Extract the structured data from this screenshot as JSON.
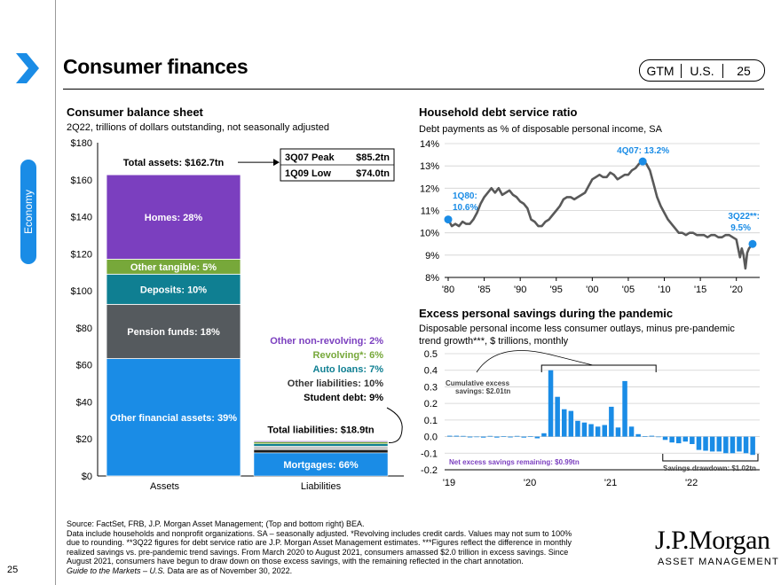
{
  "header": {
    "title": "Consumer finances",
    "badge": [
      "GTM",
      "U.S.",
      "25"
    ],
    "side_tab": "Economy",
    "page_number": "25"
  },
  "colors": {
    "accent_blue": "#1a8ce6",
    "homes": "#7b3fbf",
    "other_tangible": "#77a83a",
    "deposits": "#0f7f92",
    "pension": "#555a5e",
    "other_financial": "#1a8ce6",
    "line_gray": "#595959",
    "savings_bar": "#1a8ce6"
  },
  "chart_data": [
    {
      "type": "bar",
      "title": "Consumer balance sheet",
      "subtitle": "2Q22, trillions of dollars outstanding, not seasonally adjusted",
      "categories": [
        "Assets",
        "Liabilities"
      ],
      "ylim": [
        0,
        180
      ],
      "yticks": [
        "$0",
        "$20",
        "$40",
        "$60",
        "$80",
        "$100",
        "$120",
        "$140",
        "$160",
        "$180"
      ],
      "assets_segments": [
        {
          "label": "Other financial assets: 39%",
          "value": 63.4,
          "color": "#1a8ce6"
        },
        {
          "label": "Pension funds: 18%",
          "value": 29.3,
          "color": "#555a5e"
        },
        {
          "label": "Deposits: 10%",
          "value": 16.3,
          "color": "#0f7f92"
        },
        {
          "label": "Other tangible: 5%",
          "value": 8.1,
          "color": "#77a83a"
        },
        {
          "label": "Homes: 28%",
          "value": 45.6,
          "color": "#7b3fbf"
        }
      ],
      "liabilities_segments": [
        {
          "label": "Mortgages: 66%",
          "value": 12.5,
          "color": "#1a8ce6"
        },
        {
          "label": "Student debt: 9%",
          "value": 1.7,
          "color": "#1a1a1a"
        },
        {
          "label": "Other liabilities: 10%",
          "value": 1.9,
          "color": "#c9c9c9"
        },
        {
          "label": "Auto loans: 7%",
          "value": 1.3,
          "color": "#0f7f92"
        },
        {
          "label": "Revolving*: 6%",
          "value": 1.1,
          "color": "#77a83a"
        },
        {
          "label": "Other non-revolving: 2%",
          "value": 0.4,
          "color": "#7b3fbf"
        }
      ],
      "liab_label_colors": [
        "#7b3fbf",
        "#77a83a",
        "#0f7f92",
        "#333333",
        "#000000"
      ],
      "total_assets_label": "Total assets: $162.7tn",
      "total_liabilities_label": "Total liabilities: $18.9tn",
      "peak_table": [
        [
          "3Q07 Peak",
          "$85.2tn"
        ],
        [
          "1Q09 Low",
          "$74.0tn"
        ]
      ]
    },
    {
      "type": "line",
      "title": "Household debt service ratio",
      "subtitle": "Debt payments as % of disposable personal income, SA",
      "xlim": [
        1980,
        2022.5
      ],
      "ylim": [
        8,
        14
      ],
      "xticks": [
        "'80",
        "'85",
        "'90",
        "'95",
        "'00",
        "'05",
        "'10",
        "'15",
        "'20"
      ],
      "yticks": [
        "8%",
        "9%",
        "10%",
        "11%",
        "12%",
        "13%",
        "14%"
      ],
      "x": [
        1980,
        1980.5,
        1981,
        1981.5,
        1982,
        1982.5,
        1983,
        1983.5,
        1984,
        1984.5,
        1985,
        1985.5,
        1986,
        1986.5,
        1987,
        1987.5,
        1988,
        1988.5,
        1989,
        1989.5,
        1990,
        1990.5,
        1991,
        1991.5,
        1992,
        1992.5,
        1993,
        1993.5,
        1994,
        1994.5,
        1995,
        1995.5,
        1996,
        1996.5,
        1997,
        1997.5,
        1998,
        1998.5,
        1999,
        1999.5,
        2000,
        2000.5,
        2001,
        2001.5,
        2002,
        2002.5,
        2003,
        2003.5,
        2004,
        2004.5,
        2005,
        2005.5,
        2006,
        2006.5,
        2007,
        2007.5,
        2008,
        2008.5,
        2009,
        2009.5,
        2010,
        2010.5,
        2011,
        2011.5,
        2012,
        2012.5,
        2013,
        2013.5,
        2014,
        2014.5,
        2015,
        2015.5,
        2016,
        2016.5,
        2017,
        2017.5,
        2018,
        2018.5,
        2019,
        2019.5,
        2020,
        2020.25,
        2020.5,
        2020.75,
        2021,
        2021.25,
        2021.5,
        2021.75,
        2022,
        2022.25
      ],
      "y": [
        10.6,
        10.3,
        10.4,
        10.3,
        10.5,
        10.4,
        10.4,
        10.6,
        10.9,
        11.3,
        11.6,
        11.8,
        12.0,
        11.8,
        12.0,
        11.7,
        11.8,
        11.9,
        11.7,
        11.6,
        11.4,
        11.3,
        11.1,
        10.6,
        10.5,
        10.3,
        10.3,
        10.5,
        10.6,
        10.8,
        11.0,
        11.2,
        11.5,
        11.6,
        11.6,
        11.5,
        11.6,
        11.7,
        11.8,
        12.1,
        12.4,
        12.5,
        12.6,
        12.5,
        12.5,
        12.7,
        12.6,
        12.4,
        12.5,
        12.6,
        12.6,
        12.8,
        12.9,
        13.1,
        13.2,
        13.1,
        12.8,
        12.2,
        11.6,
        11.2,
        10.9,
        10.6,
        10.4,
        10.2,
        10.0,
        10.0,
        9.9,
        10.0,
        10.0,
        9.9,
        9.9,
        9.9,
        9.8,
        9.9,
        9.9,
        9.8,
        9.8,
        9.9,
        9.9,
        9.8,
        9.7,
        9.3,
        8.9,
        9.3,
        9.0,
        8.4,
        9.1,
        9.3,
        9.4,
        9.5
      ],
      "annotations": {
        "start_label": [
          "1Q80:",
          "10.6%"
        ],
        "peak_label": "4Q07:  13.2%",
        "end_label": [
          "3Q22**:",
          "9.5%"
        ]
      }
    },
    {
      "type": "bar",
      "title": "Excess personal savings during the pandemic",
      "subtitle": [
        "Disposable personal income less consumer outlays, minus pre-pandemic",
        "trend growth***, $ trillions, monthly"
      ],
      "ylim": [
        -0.2,
        0.5
      ],
      "yticks": [
        "-0.2",
        "-0.1",
        "0.0",
        "0.1",
        "0.2",
        "0.3",
        "0.4",
        "0.5"
      ],
      "xticks": [
        "'19",
        "'20",
        "'21",
        "'22"
      ],
      "x_start": "2019-01",
      "values": [
        0.005,
        0.005,
        0.004,
        -0.005,
        -0.003,
        -0.006,
        0.004,
        -0.006,
        0.003,
        -0.005,
        0.004,
        -0.006,
        0.003,
        -0.01,
        0.02,
        0.4,
        0.24,
        0.165,
        0.155,
        0.095,
        0.085,
        0.075,
        0.06,
        0.07,
        0.18,
        0.055,
        0.335,
        0.06,
        0.015,
        0.003,
        0.005,
        0.0,
        -0.02,
        -0.035,
        -0.04,
        -0.03,
        -0.045,
        -0.08,
        -0.085,
        -0.09,
        -0.09,
        -0.1,
        -0.1,
        -0.09,
        -0.1,
        -0.11
      ],
      "annotations": {
        "cumulative": [
          "Cumulative excess",
          "savings: $2.01tn"
        ],
        "remaining": "Net excess savings remaining: $0.99tn",
        "drawdown": "Savings drawdown: $1.02tn"
      }
    }
  ],
  "footnote": {
    "lines": [
      "Source: FactSet, FRB, J.P. Morgan Asset Management; (Top and bottom right) BEA.",
      "Data include households and nonprofit organizations. SA – seasonally adjusted. *Revolving includes credit cards. Values may not sum to 100%",
      "due to rounding. **3Q22 figures for debt service ratio are J.P. Morgan Asset Management estimates. ***Figures reflect the difference in monthly",
      "realized savings vs. pre-pandemic trend savings. From March 2020 to August 2021, consumers amassed $2.0 trillion in excess savings. Since",
      "August 2021, consumers have begun to draw down on those excess savings, with the remaining reflected in the chart annotation."
    ],
    "guide_italic": "Guide to the Markets – U.S.",
    "guide_rest": " Data are as of November 30, 2022."
  },
  "logo": {
    "name": "J.P.Morgan",
    "sub": "ASSET MANAGEMENT"
  }
}
